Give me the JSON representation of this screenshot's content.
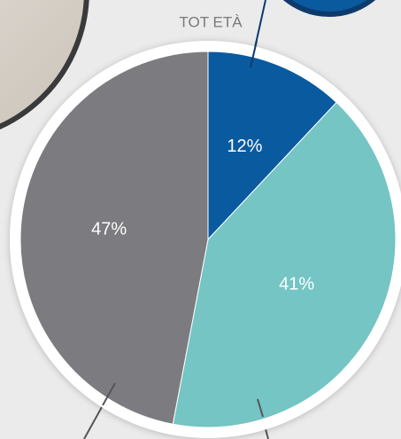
{
  "chart_data": {
    "type": "pie",
    "title": "TOT ETÀ",
    "categories": [
      null,
      null,
      null
    ],
    "values": [
      12,
      41,
      47
    ],
    "value_labels": [
      "12%",
      "41%",
      "47%"
    ],
    "colors": [
      "#0a5aa0",
      "#74c5c4",
      "#7c7b80"
    ]
  }
}
